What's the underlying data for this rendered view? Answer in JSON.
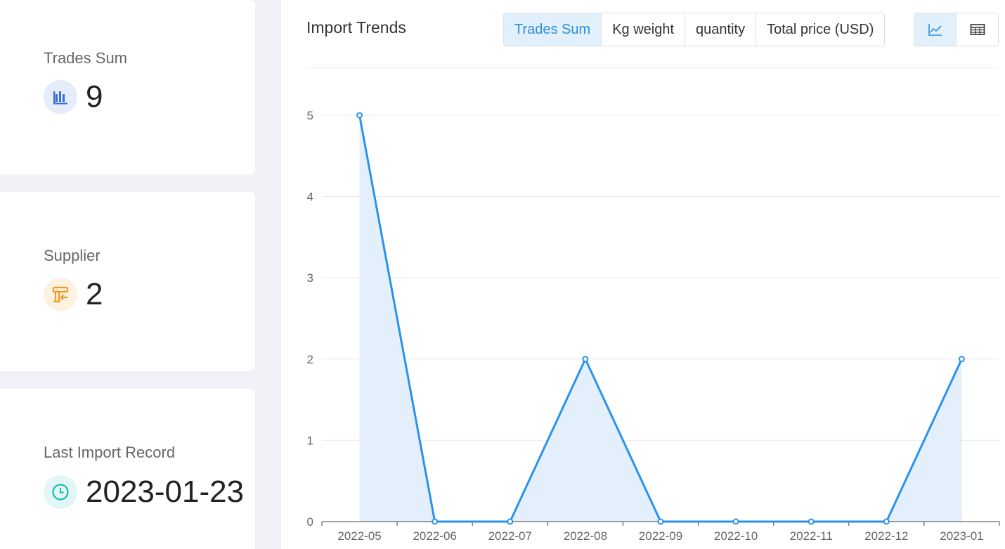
{
  "stats": {
    "trades": {
      "label": "Trades Sum",
      "value": "9",
      "icon": "bar-chart-icon",
      "icon_color": "#3a6fd8",
      "icon_bg": "#e6ecf9"
    },
    "supplier": {
      "label": "Supplier",
      "value": "2",
      "icon": "supplier-store-icon",
      "icon_color": "#f29a1d",
      "icon_bg": "#fdf1e2"
    },
    "last_import": {
      "label": "Last Import Record",
      "value": "2023-01-23",
      "icon": "clock-icon",
      "icon_color": "#1fbcb2",
      "icon_bg": "#e2f6f5"
    }
  },
  "chart_panel": {
    "title": "Import Trends",
    "metric_tabs": [
      "Trades Sum",
      "Kg weight",
      "quantity",
      "Total price (USD)"
    ],
    "active_metric": "Trades Sum",
    "view_buttons": [
      {
        "icon": "line-chart-icon",
        "active": true
      },
      {
        "icon": "table-icon",
        "active": false
      }
    ]
  },
  "chart_data": {
    "type": "area",
    "title": "",
    "xlabel": "",
    "ylabel": "",
    "categories": [
      "2022-05",
      "2022-06",
      "2022-07",
      "2022-08",
      "2022-09",
      "2022-10",
      "2022-11",
      "2022-12",
      "2023-01"
    ],
    "values": [
      5,
      0,
      0,
      2,
      0,
      0,
      0,
      0,
      2
    ],
    "ylim": [
      0,
      5
    ],
    "yticks": [
      0,
      1,
      2,
      3,
      4,
      5
    ],
    "grid": true,
    "line_color": "#2b92ec",
    "fill_color": "#e3f0fc"
  }
}
